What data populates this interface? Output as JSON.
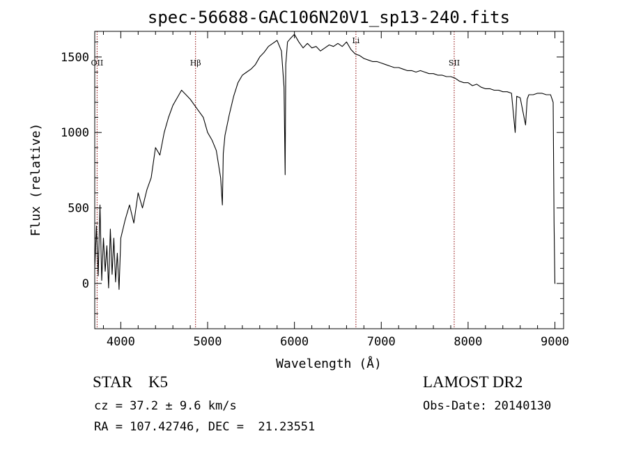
{
  "chart_data": {
    "type": "line",
    "title": "spec-56688-GAC106N20V1_sp13-240.fits",
    "xlabel": "Wavelength (Å)",
    "ylabel": "Flux (relative)",
    "xlim": [
      3700,
      9100
    ],
    "ylim": [
      -300,
      1670
    ],
    "xticks": [
      4000,
      5000,
      6000,
      7000,
      8000,
      9000
    ],
    "yticks": [
      0,
      500,
      1000,
      1500
    ],
    "grid": false,
    "line_color": "#000000",
    "marker_color": "#8b0000",
    "lines": [
      {
        "label": "OII",
        "wavelength": 3727
      },
      {
        "label": "Hβ",
        "wavelength": 4861
      },
      {
        "label": "Li",
        "wavelength": 6708
      },
      {
        "label": "SII",
        "wavelength": 7840
      }
    ],
    "x": [
      3700,
      3720,
      3740,
      3760,
      3780,
      3800,
      3820,
      3840,
      3860,
      3880,
      3900,
      3920,
      3940,
      3960,
      3980,
      4000,
      4050,
      4100,
      4150,
      4200,
      4250,
      4300,
      4350,
      4400,
      4450,
      4500,
      4550,
      4600,
      4650,
      4700,
      4750,
      4800,
      4850,
      4900,
      4950,
      5000,
      5050,
      5100,
      5150,
      5170,
      5180,
      5200,
      5250,
      5300,
      5350,
      5400,
      5450,
      5500,
      5550,
      5600,
      5650,
      5700,
      5750,
      5800,
      5850,
      5880,
      5893,
      5900,
      5920,
      5950,
      6000,
      6050,
      6100,
      6150,
      6200,
      6250,
      6300,
      6350,
      6400,
      6450,
      6500,
      6550,
      6600,
      6650,
      6700,
      6750,
      6800,
      6850,
      6900,
      6950,
      7000,
      7050,
      7100,
      7150,
      7200,
      7250,
      7300,
      7350,
      7400,
      7450,
      7500,
      7550,
      7600,
      7650,
      7700,
      7750,
      7800,
      7850,
      7900,
      7950,
      8000,
      8050,
      8100,
      8150,
      8200,
      8250,
      8300,
      8350,
      8400,
      8450,
      8500,
      8542,
      8560,
      8600,
      8662,
      8680,
      8700,
      8750,
      8800,
      8850,
      8900,
      8950,
      8980,
      8990,
      9000,
      9005
    ],
    "y": [
      100,
      380,
      50,
      520,
      20,
      300,
      80,
      250,
      -30,
      360,
      60,
      300,
      10,
      200,
      -40,
      300,
      420,
      520,
      400,
      600,
      500,
      620,
      700,
      900,
      850,
      1000,
      1100,
      1180,
      1230,
      1280,
      1250,
      1220,
      1180,
      1140,
      1100,
      1000,
      950,
      880,
      700,
      520,
      860,
      980,
      1120,
      1240,
      1330,
      1380,
      1400,
      1420,
      1450,
      1500,
      1530,
      1570,
      1590,
      1610,
      1540,
      1300,
      720,
      1450,
      1600,
      1620,
      1650,
      1600,
      1560,
      1590,
      1560,
      1570,
      1540,
      1560,
      1580,
      1570,
      1590,
      1570,
      1600,
      1550,
      1520,
      1510,
      1490,
      1480,
      1470,
      1470,
      1460,
      1450,
      1440,
      1430,
      1430,
      1420,
      1410,
      1410,
      1400,
      1410,
      1400,
      1390,
      1390,
      1380,
      1380,
      1370,
      1370,
      1360,
      1340,
      1330,
      1330,
      1310,
      1320,
      1300,
      1290,
      1290,
      1280,
      1280,
      1270,
      1270,
      1260,
      1000,
      1240,
      1230,
      1050,
      1220,
      1250,
      1250,
      1260,
      1260,
      1250,
      1250,
      1200,
      400,
      0,
      0
    ]
  },
  "info": {
    "class": "STAR    K5",
    "survey": "LAMOST DR2",
    "cz": "cz = 37.2 ± 9.6 km/s",
    "obs_date": "Obs-Date: 20140130",
    "radec": "RA = 107.42746, DEC =  21.23551"
  }
}
